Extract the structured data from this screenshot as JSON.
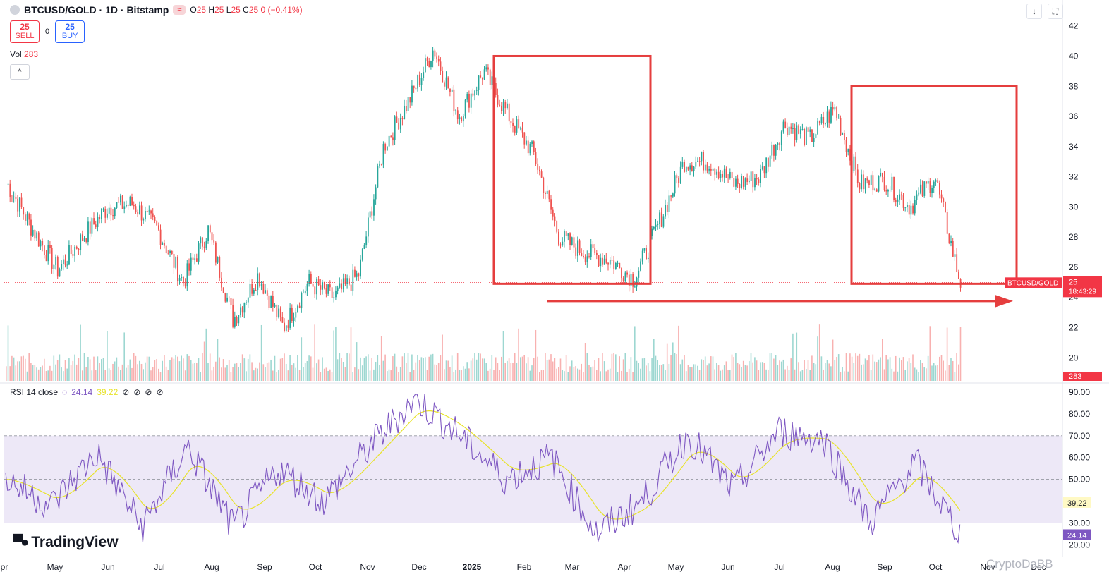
{
  "header": {
    "symbol": "BTCUSD/GOLD · 1D · Bitstamp",
    "indicator_glyph": "≈",
    "ohlc": {
      "o": "25",
      "h": "25",
      "l": "25",
      "c": "25",
      "change": "0 (−0.41%)"
    }
  },
  "trade": {
    "sell_price": "25",
    "sell_label": "SELL",
    "spread": "0",
    "buy_price": "25",
    "buy_label": "BUY"
  },
  "volume": {
    "label": "Vol",
    "value": "283"
  },
  "collapse_icon": "chevron-up-icon",
  "rsi": {
    "label": "RSI 14 close",
    "value": "24.14",
    "ma_value": "39.22",
    "eye_icons": [
      "eye-off-icon",
      "eye-off-icon",
      "eye-off-icon",
      "eye-off-icon"
    ]
  },
  "price_label": {
    "symbol": "BTCUSD/GOLD",
    "value": "25",
    "countdown": "18:43:29"
  },
  "volume_label": "283",
  "brand": "TradingView",
  "watermark": "CryptoDaBB",
  "colors": {
    "up": "#26a69a",
    "down": "#ef5350",
    "rsi": "#7e57c2",
    "rsi_ma": "#e8e32a",
    "box": "#e53e3e",
    "rsi_band": "#ede8f7"
  },
  "chart_data": {
    "type": "candlestick",
    "x_axis_labels": [
      "pr",
      "May",
      "Jun",
      "Jul",
      "Aug",
      "Sep",
      "Oct",
      "Nov",
      "Dec",
      "2025",
      "Feb",
      "Mar",
      "Apr",
      "May",
      "Jun",
      "Jul",
      "Aug",
      "Sep",
      "Oct",
      "Nov",
      "Dec"
    ],
    "price_axis_ticks": [
      42,
      40,
      38,
      36,
      34,
      32,
      30,
      28,
      26,
      24,
      22,
      20
    ],
    "price_range": [
      19.5,
      42.5
    ],
    "price_path": [
      {
        "x": "Apr 2024",
        "y": 31.5
      },
      {
        "x": "Apr mid",
        "y": 28.5
      },
      {
        "x": "May",
        "y": 25.8
      },
      {
        "x": "May mid",
        "y": 28.0
      },
      {
        "x": "Jun",
        "y": 30.0
      },
      {
        "x": "Jun mid",
        "y": 30.2
      },
      {
        "x": "Jul",
        "y": 28.5
      },
      {
        "x": "Jul mid",
        "y": 25.0
      },
      {
        "x": "Aug",
        "y": 28.5
      },
      {
        "x": "Aug mid",
        "y": 22.5
      },
      {
        "x": "Sep",
        "y": 25.5
      },
      {
        "x": "Sep mid",
        "y": 22.0
      },
      {
        "x": "Oct",
        "y": 25.0
      },
      {
        "x": "Oct mid",
        "y": 24.0
      },
      {
        "x": "Nov",
        "y": 25.5
      },
      {
        "x": "Nov mid",
        "y": 34.0
      },
      {
        "x": "Dec",
        "y": 37.0
      },
      {
        "x": "Dec mid",
        "y": 40.5
      },
      {
        "x": "Jan 2025",
        "y": 36.0
      },
      {
        "x": "Jan mid",
        "y": 39.0
      },
      {
        "x": "Feb",
        "y": 36.0
      },
      {
        "x": "Feb mid",
        "y": 33.5
      },
      {
        "x": "Mar",
        "y": 28.0
      },
      {
        "x": "Mar mid",
        "y": 27.0
      },
      {
        "x": "Apr",
        "y": 26.5
      },
      {
        "x": "Apr mid",
        "y": 25.2
      },
      {
        "x": "May",
        "y": 29.0
      },
      {
        "x": "May mid",
        "y": 33.0
      },
      {
        "x": "Jun",
        "y": 33.0
      },
      {
        "x": "Jun mid",
        "y": 31.5
      },
      {
        "x": "Jul",
        "y": 32.0
      },
      {
        "x": "Jul mid",
        "y": 35.5
      },
      {
        "x": "Aug",
        "y": 34.5
      },
      {
        "x": "Aug mid",
        "y": 36.5
      },
      {
        "x": "Sep",
        "y": 31.5
      },
      {
        "x": "Sep mid",
        "y": 31.8
      },
      {
        "x": "Oct",
        "y": 30.0
      },
      {
        "x": "Oct mid",
        "y": 32.0
      },
      {
        "x": "Oct end",
        "y": 25.0
      }
    ],
    "last_price": 25,
    "reference_line": 25,
    "highlight_boxes": [
      {
        "from": "Jan 2025",
        "to": "Apr 2025",
        "high": 40.0,
        "low": 25.0
      },
      {
        "from": "Aug 2025",
        "to": "Oct 2025",
        "high": 38.0,
        "low": 25.0
      }
    ],
    "arrow": {
      "from": "Jan 2025",
      "to": "Nov 2025",
      "level": 24.6
    },
    "rsi_axis_ticks": [
      90,
      80,
      70,
      60,
      50,
      40,
      30,
      20
    ],
    "rsi_levels": {
      "upper": 70,
      "middle": 50,
      "lower": 30
    },
    "rsi_path": [
      {
        "x": "Apr 2024",
        "y": 50
      },
      {
        "x": "May",
        "y": 38
      },
      {
        "x": "Jun",
        "y": 62
      },
      {
        "x": "Jul",
        "y": 28
      },
      {
        "x": "Aug",
        "y": 65
      },
      {
        "x": "Aug mid",
        "y": 28
      },
      {
        "x": "Sep",
        "y": 55
      },
      {
        "x": "Oct",
        "y": 40
      },
      {
        "x": "Nov",
        "y": 65
      },
      {
        "x": "Nov end",
        "y": 87
      },
      {
        "x": "Dec",
        "y": 70
      },
      {
        "x": "Jan 2025",
        "y": 50
      },
      {
        "x": "Feb",
        "y": 60
      },
      {
        "x": "Mar",
        "y": 25
      },
      {
        "x": "Apr",
        "y": 40
      },
      {
        "x": "May",
        "y": 70
      },
      {
        "x": "Jun",
        "y": 45
      },
      {
        "x": "Jul",
        "y": 72
      },
      {
        "x": "Aug",
        "y": 68
      },
      {
        "x": "Sep",
        "y": 30
      },
      {
        "x": "Oct",
        "y": 58
      },
      {
        "x": "Oct end",
        "y": 24.14
      }
    ],
    "rsi_last": 24.14,
    "rsi_ma_last": 39.22
  }
}
